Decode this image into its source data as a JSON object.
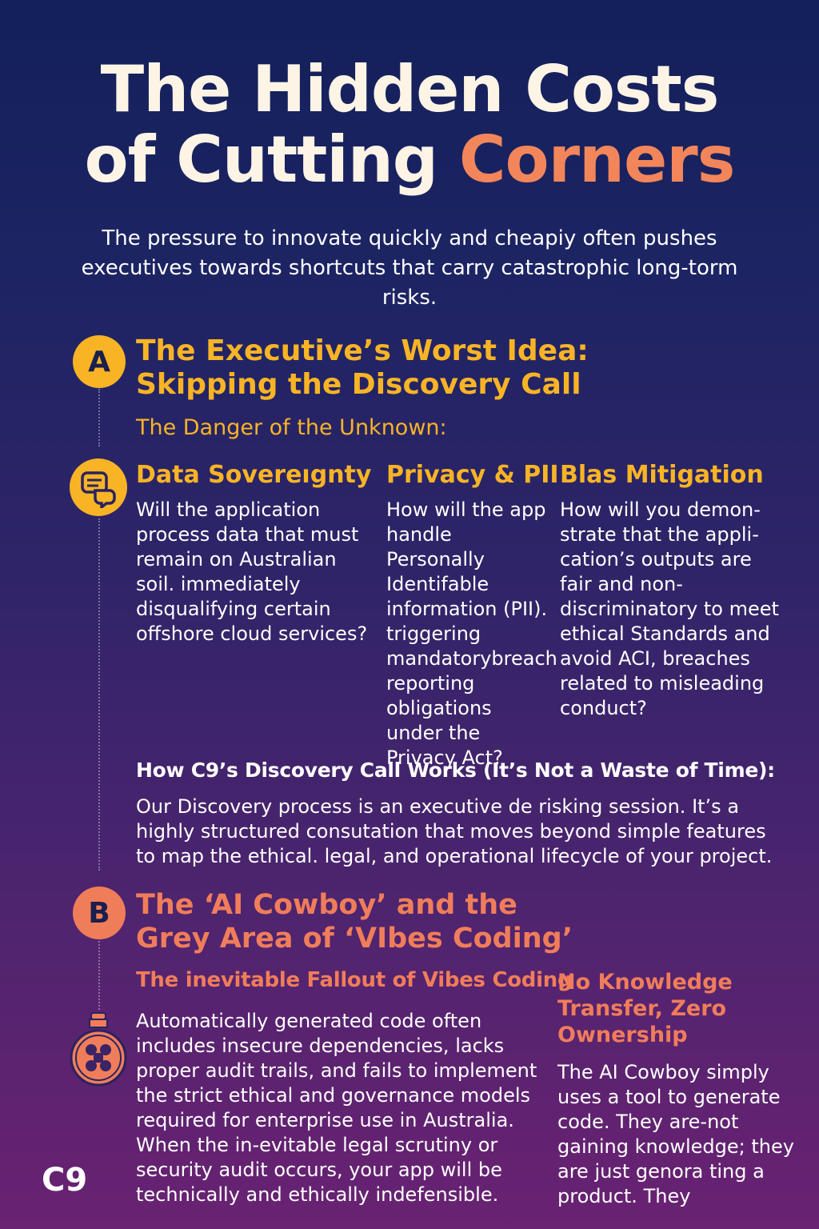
{
  "title": {
    "line1": "The Hidden Costs",
    "line2_prefix": "of Cutting ",
    "line2_accent": "Corners"
  },
  "intro": "The pressure to innovate quickly and cheapiy often pushes executives towards shortcuts that carry catastrophic long-torm risks.",
  "section_a": {
    "badge": "A",
    "heading": "The Executive’s Worst Idea: Skipping the Discovery Call",
    "subheading": "The Danger of the Unknown:",
    "columns": [
      {
        "title": "Data Sovereıgnty",
        "body": "Will the application process data that must remain on Australian soil. immediately disqualifying certain offshore cloud services?"
      },
      {
        "title": "Privacy & PII",
        "body": "How will the app handle Personally Identifable information (PII). triggering mandatorybreach reporting obligations under the Privacy Act?"
      },
      {
        "title": "Blas Mitigation",
        "body": "How will you demon-strate that the appli-cation’s outputs are fair and non-discriminatory to meet ethical Standards and avoid ACI, breaches related to misleading conduct?"
      }
    ],
    "how_heading": "How C9’s Discovery Call Works (It’s Not a Waste of Time):",
    "how_body": "Our Discovery process is an executive de risking session. It’s a highly structured consutation  that moves beyond simple features to map the ethical. legal, and operational lifecycle of your project."
  },
  "section_b": {
    "badge": "B",
    "heading": "The ‘AI Cowboy’ and the Grey Area of ‘VIbes Coding’",
    "subheading": "The inevitable Fallout of Vibes Coding",
    "body": "Automatically generated code often includes insecure dependencies, lacks proper audit trails, and fails to implement the strict ethical and governance models required for enterprise use in Australia. When the in-evitable legal scrutiny or security audit occurs, your app will be technically and ethically indefensible.",
    "side_title": "No Knowledge Transfer, Zero Ownership",
    "side_body": "The AI Cowboy simply uses a tool to generate code. They are-not gaining knowledge; they are just genora ting a product. They"
  },
  "logo": "C9",
  "colors": {
    "accent_orange": "#f07d5a",
    "accent_yellow": "#f9b425",
    "title_cream": "#fdf4e6"
  },
  "icons": [
    "chat-bubbles-icon",
    "bottle-icon"
  ]
}
